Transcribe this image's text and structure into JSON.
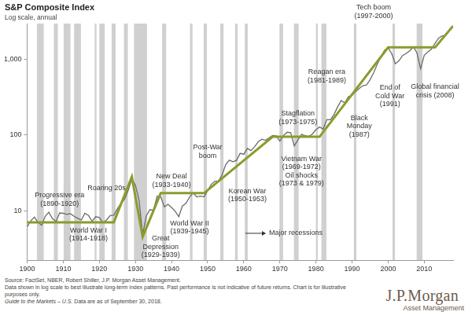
{
  "chart_data": {
    "type": "line",
    "title": "S&P Composite Index",
    "subtitle": "Log scale, annual",
    "log": "y",
    "grid": false,
    "xlim": [
      1900,
      2018
    ],
    "xticks": [
      1900,
      1910,
      1920,
      1930,
      1940,
      1950,
      1960,
      1970,
      1980,
      1990,
      2000,
      2010
    ],
    "ylim": [
      2.2,
      3000
    ],
    "yticks": [
      10,
      100,
      {
        "value": 1000,
        "label": "1,000"
      }
    ],
    "series": [
      {
        "color": "#6b6b6b",
        "line_style": "solid",
        "marker": "none",
        "x": [
          1900,
          1901,
          1902,
          1903,
          1904,
          1905,
          1906,
          1907,
          1908,
          1909,
          1910,
          1911,
          1912,
          1913,
          1914,
          1915,
          1916,
          1917,
          1918,
          1919,
          1920,
          1921,
          1922,
          1923,
          1924,
          1925,
          1926,
          1927,
          1928,
          1929,
          1930,
          1931,
          1932,
          1933,
          1934,
          1935,
          1936,
          1937,
          1938,
          1939,
          1940,
          1941,
          1942,
          1943,
          1944,
          1945,
          1946,
          1947,
          1948,
          1949,
          1950,
          1951,
          1952,
          1953,
          1954,
          1955,
          1956,
          1957,
          1958,
          1959,
          1960,
          1961,
          1962,
          1963,
          1964,
          1965,
          1966,
          1967,
          1968,
          1969,
          1970,
          1971,
          1972,
          1973,
          1974,
          1975,
          1976,
          1977,
          1978,
          1979,
          1980,
          1981,
          1982,
          1983,
          1984,
          1985,
          1986,
          1987,
          1988,
          1989,
          1990,
          1991,
          1992,
          1993,
          1994,
          1995,
          1996,
          1997,
          1998,
          1999,
          2000,
          2001,
          2002,
          2003,
          2004,
          2005,
          2006,
          2007,
          2008,
          2009,
          2010,
          2011,
          2012,
          2013,
          2014,
          2015,
          2016,
          2017,
          2018
        ],
        "values": [
          6.1,
          7.3,
          8.2,
          7.0,
          6.4,
          8.4,
          9.5,
          7.8,
          7.2,
          9.3,
          9.2,
          8.9,
          9.1,
          8.4,
          7.9,
          7.5,
          9.2,
          8.6,
          7.2,
          8.3,
          8.1,
          6.9,
          7.5,
          8.6,
          8.7,
          10.6,
          12.5,
          14.2,
          18.5,
          26.0,
          21.7,
          13.7,
          4.8,
          8.5,
          10.3,
          10.1,
          15.5,
          15.3,
          11.2,
          12.1,
          11.0,
          9.8,
          8.3,
          11.5,
          12.5,
          15.2,
          17.1,
          15.2,
          15.5,
          15.2,
          18.4,
          22.3,
          24.5,
          24.7,
          29.7,
          40.5,
          46.6,
          44.4,
          46.2,
          57.4,
          55.6,
          66.7,
          62.4,
          69.9,
          81.4,
          88.2,
          85.3,
          91.9,
          98.7,
          97.8,
          83.2,
          98.3,
          109.2,
          107.4,
          72.0,
          86.2,
          102.0,
          98.2,
          96.0,
          103.0,
          118,
          128,
          120,
          160,
          160,
          187,
          236,
          287,
          266,
          323,
          335,
          376,
          416,
          451,
          460,
          542,
          671,
          873,
          1085,
          1327,
          1427,
          1194,
          880,
          965,
          1131,
          1207,
          1311,
          1477,
          1221,
          760,
          1140,
          1268,
          1379,
          1643,
          1931,
          2061,
          2092,
          2449,
          2750
        ]
      },
      {
        "color": "#8c9b2c",
        "line_style": "solid",
        "marker": "none",
        "x": [
          1900,
          1924,
          1929,
          1932,
          1937,
          1949,
          1968,
          1981,
          2000,
          2013,
          2018
        ],
        "values": [
          7,
          7,
          28,
          4.5,
          17,
          17,
          95,
          95,
          1450,
          1450,
          2800
        ]
      }
    ],
    "recessions": {
      "label": "Major recessions",
      "x": 1967,
      "y": 5,
      "color": "#d0d0d0",
      "periods": [
        [
          1902.7,
          1904.6
        ],
        [
          1907.4,
          1908.5
        ],
        [
          1910.1,
          1912.0
        ],
        [
          1913.0,
          1914.9
        ],
        [
          1918.7,
          1919.2
        ],
        [
          1920.0,
          1921.5
        ],
        [
          1923.4,
          1924.5
        ],
        [
          1926.8,
          1927.9
        ],
        [
          1929.6,
          1933.2
        ],
        [
          1937.4,
          1938.5
        ],
        [
          1945.1,
          1945.8
        ],
        [
          1948.9,
          1949.8
        ],
        [
          1953.5,
          1954.4
        ],
        [
          1957.6,
          1958.3
        ],
        [
          1960.3,
          1961.1
        ],
        [
          1969.9,
          1970.9
        ],
        [
          1973.9,
          1975.2
        ],
        [
          1980.0,
          1980.5
        ],
        [
          1981.5,
          1982.9
        ],
        [
          1990.5,
          1991.2
        ],
        [
          2001.2,
          2001.9
        ],
        [
          2007.9,
          2009.5
        ]
      ]
    },
    "annotations": [
      {
        "lines": [
          "Progressive era",
          "(1890-1920)"
        ],
        "x": 1909,
        "y": 14
      },
      {
        "lines": [
          "World War I",
          "(1914-1918)"
        ],
        "x": 1917,
        "y": 4.8
      },
      {
        "lines": [
          "Roaring 20s"
        ],
        "x": 1922,
        "y": 20
      },
      {
        "lines": [
          "Great",
          "Depression",
          "(1929-1939)"
        ],
        "x": 1937,
        "y": 3.3
      },
      {
        "lines": [
          "New Deal",
          "(1933-1940)"
        ],
        "x": 1940,
        "y": 25
      },
      {
        "lines": [
          "World War II",
          "(1939-1945)"
        ],
        "x": 1945,
        "y": 6.0
      },
      {
        "lines": [
          "Post-War",
          "boom"
        ],
        "x": 1950,
        "y": 60
      },
      {
        "lines": [
          "Korean War",
          "(1950-1953)"
        ],
        "x": 1961,
        "y": 16
      },
      {
        "lines": [
          "Stagflation",
          "(1973-1975)"
        ],
        "x": 1975,
        "y": 170
      },
      {
        "lines": [
          "Vietnam War",
          "(1969-1972)",
          "Oil shocks",
          "(1973 & 1979)"
        ],
        "x": 1976,
        "y": 33
      },
      {
        "lines": [
          "Reagan era",
          "(1981-1989)"
        ],
        "x": 1983,
        "y": 600
      },
      {
        "lines": [
          "Black",
          "Monday",
          "(1987)"
        ],
        "x": 1992,
        "y": 130
      },
      {
        "lines": [
          "End of",
          "Cold War",
          "(1991)"
        ],
        "x": 2000.5,
        "y": 330
      },
      {
        "lines": [
          "Tech boom",
          "(1997-2000)"
        ],
        "x": 1996,
        "y": 4300
      },
      {
        "lines": [
          "Global financial",
          "crisis (2008)"
        ],
        "x": 2013,
        "y": 380
      }
    ],
    "footnotes": {
      "source": "Source: FactSet, NBER, Robert Shiller, J.P. Morgan Asset Management.",
      "disclaimer": "Data shown in log scale to best illustrate long-term index patterns. Past performance is not indicative of future returns. Chart is for illustrative purposes only.",
      "guide": "Guide to the Markets – U.S.",
      "as_of": "Data are as of September 30, 2018."
    },
    "logo": {
      "name": "J.P.Morgan",
      "unit": "Asset Management"
    }
  }
}
